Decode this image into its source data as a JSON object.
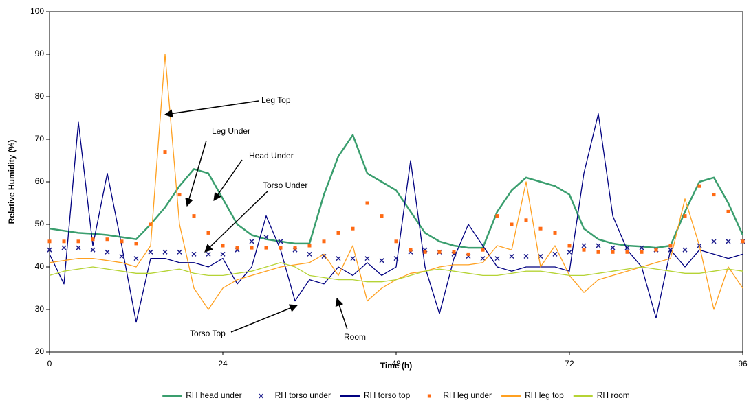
{
  "chart_data": {
    "type": "line",
    "xlabel": "Time (h)",
    "ylabel": "Relative Humidity (%)",
    "x": [
      0,
      2,
      4,
      6,
      8,
      10,
      12,
      14,
      16,
      18,
      20,
      22,
      24,
      26,
      28,
      30,
      32,
      34,
      36,
      38,
      40,
      42,
      44,
      46,
      48,
      50,
      52,
      54,
      56,
      58,
      60,
      62,
      64,
      66,
      68,
      70,
      72,
      74,
      76,
      78,
      80,
      82,
      84,
      86,
      88,
      90,
      92,
      94,
      96
    ],
    "xlim": [
      0,
      96
    ],
    "xticks": [
      0,
      24,
      48,
      72,
      96
    ],
    "ylim": [
      20,
      100
    ],
    "yticks": [
      20,
      30,
      40,
      50,
      60,
      70,
      80,
      90,
      100
    ],
    "grid": false,
    "legend": "bottom",
    "series": [
      {
        "name": "RH head under",
        "color": "#3a9e6e",
        "style": "line",
        "values": [
          49,
          48.5,
          48,
          47.8,
          47.5,
          47,
          46.5,
          50,
          54,
          59,
          63,
          62,
          56,
          50,
          47.5,
          46.5,
          46,
          45.5,
          45.5,
          57,
          66,
          71,
          62,
          60,
          58,
          53,
          48,
          46,
          45,
          44.5,
          44.5,
          53,
          58,
          61,
          60,
          59,
          57,
          49,
          46.5,
          45.5,
          45,
          44.8,
          44.5,
          45,
          53,
          60,
          61,
          55,
          47.5
        ]
      },
      {
        "name": "RH torso under",
        "color": "#1c1c8c",
        "style": "x",
        "values": [
          44,
          44.5,
          44.5,
          44,
          43.5,
          42.5,
          42,
          43.5,
          43.5,
          43.5,
          43,
          43,
          43,
          44,
          46,
          47,
          46,
          44,
          43,
          42.5,
          42,
          42,
          42,
          41.5,
          42,
          43.5,
          44,
          43.5,
          43,
          42.5,
          42,
          42,
          42.5,
          42.5,
          42.5,
          43,
          43.5,
          45,
          45,
          44.5,
          44.5,
          44.5,
          44,
          44,
          44,
          45,
          46,
          46,
          46
        ]
      },
      {
        "name": "RH torso top",
        "color": "#000080",
        "style": "line",
        "values": [
          43,
          36,
          74,
          45,
          62,
          45,
          27,
          42,
          42,
          41,
          41,
          40,
          42,
          36,
          40,
          52,
          44,
          32,
          37,
          36,
          40,
          38,
          41,
          38,
          40,
          65,
          40,
          29,
          42,
          50,
          45,
          40,
          39,
          40,
          40,
          40,
          39,
          62,
          76,
          52,
          44,
          40,
          28,
          44,
          40,
          44,
          43,
          42,
          43
        ]
      },
      {
        "name": "RH leg under",
        "color": "#ff6a13",
        "style": "dot",
        "values": [
          46,
          46,
          46,
          46.5,
          46.5,
          46,
          45.5,
          50,
          67,
          57,
          52,
          48,
          45,
          44.5,
          44.5,
          44.5,
          44.5,
          44.5,
          45,
          46,
          48,
          49,
          55,
          52,
          46,
          44,
          43.5,
          43.5,
          43.5,
          43,
          44,
          52,
          50,
          51,
          49,
          48,
          45,
          44,
          43.5,
          43.5,
          43.5,
          43.5,
          44,
          45,
          52,
          59,
          57,
          53,
          46
        ]
      },
      {
        "name": "RH leg top",
        "color": "#ffa020",
        "style": "line",
        "values": [
          41,
          41.5,
          42,
          42,
          41.5,
          41,
          40,
          45,
          90,
          50,
          35,
          30,
          35,
          37,
          38,
          39,
          40,
          40.5,
          41,
          43,
          38,
          45,
          32,
          35,
          37,
          38.5,
          39,
          40,
          40.5,
          40.5,
          41,
          45,
          44,
          60,
          40,
          45,
          38,
          34,
          37,
          38,
          39,
          40,
          41,
          42,
          56,
          45,
          30,
          40,
          35
        ]
      },
      {
        "name": "RH room",
        "color": "#b5d334",
        "style": "line",
        "values": [
          38,
          39,
          39.5,
          40,
          39.5,
          39,
          38.5,
          38.5,
          39,
          39.5,
          38.5,
          38,
          38,
          38.5,
          39,
          40,
          41,
          40,
          38,
          37.5,
          37,
          37,
          36.5,
          36.5,
          37,
          38,
          39,
          39.5,
          39,
          38.5,
          38,
          38,
          38.5,
          39,
          39,
          38.5,
          38,
          38,
          38.5,
          39,
          39.5,
          40,
          39.5,
          39,
          38.5,
          38.5,
          39,
          39.5,
          39
        ]
      }
    ],
    "annotations": [
      "Leg Top",
      "Leg Under",
      "Head Under",
      "Torso Under",
      "Torso Top",
      "Room"
    ]
  }
}
